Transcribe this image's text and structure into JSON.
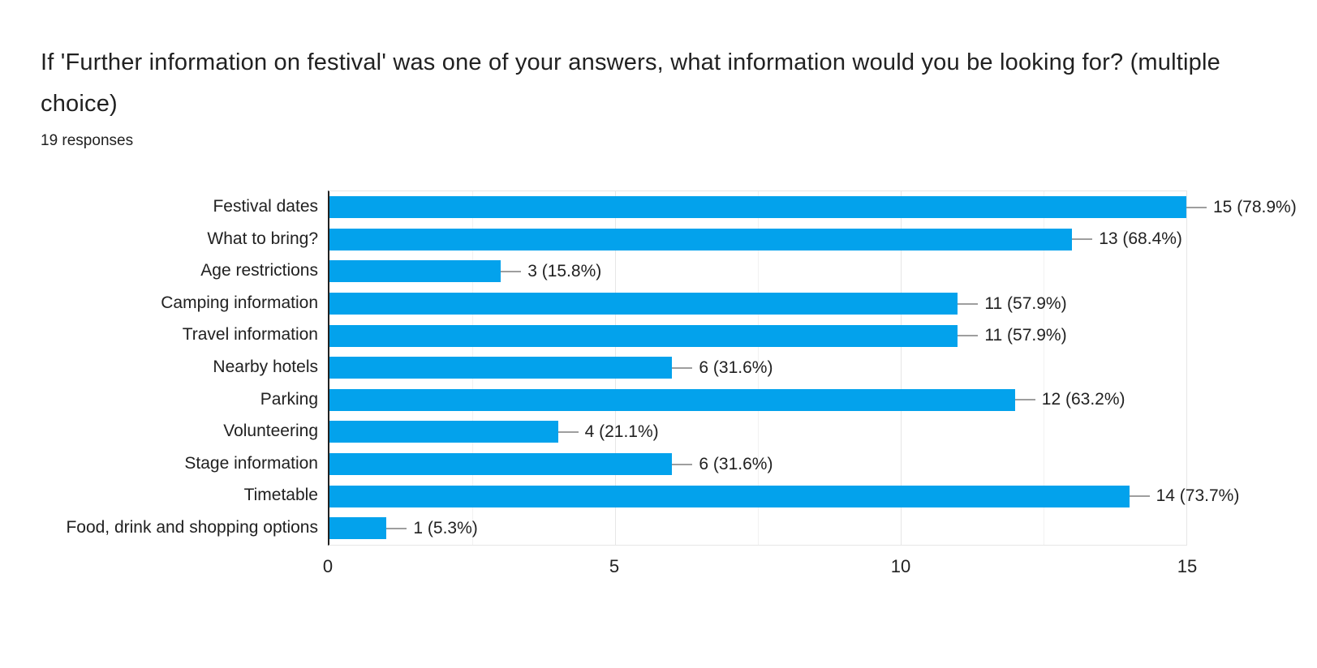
{
  "header": {
    "title": "If 'Further information on festival' was one of your answers, what information would you be looking for? (multiple choice)",
    "responses_label": "19 responses"
  },
  "chart_data": {
    "type": "bar",
    "orientation": "horizontal",
    "title": "If 'Further information on festival' was one of your answers, what information would you be looking for? (multiple choice)",
    "subtitle": "19 responses",
    "total_responses": 19,
    "categories": [
      "Festival dates",
      "What to bring?",
      "Age restrictions",
      "Camping information",
      "Travel information",
      "Nearby hotels",
      "Parking",
      "Volunteering",
      "Stage information",
      "Timetable",
      "Food, drink and shopping options"
    ],
    "values": [
      15,
      13,
      3,
      11,
      11,
      6,
      12,
      4,
      6,
      14,
      1
    ],
    "value_labels": [
      "15 (78.9%)",
      "13 (68.4%)",
      "3 (15.8%)",
      "11 (57.9%)",
      "11 (57.9%)",
      "6 (31.6%)",
      "12 (63.2%)",
      "4 (21.1%)",
      "6 (31.6%)",
      "14 (73.7%)",
      "1 (5.3%)"
    ],
    "xlabel": "",
    "ylabel": "",
    "xlim": [
      0,
      15
    ],
    "xticks": [
      0,
      5,
      10,
      15
    ],
    "xtick_labels": [
      "0",
      "5",
      "10",
      "15"
    ],
    "minor_gridlines": [
      2.5,
      7.5,
      12.5
    ],
    "grid": true,
    "legend": "none"
  },
  "colors": {
    "bar": "#03a2ec",
    "axis_line": "#212121",
    "major_gridline": "#e6e6e6",
    "minor_gridline": "#f2f2f2",
    "leader_line": "#9e9e9e",
    "text": "#212121",
    "background": "#ffffff"
  }
}
